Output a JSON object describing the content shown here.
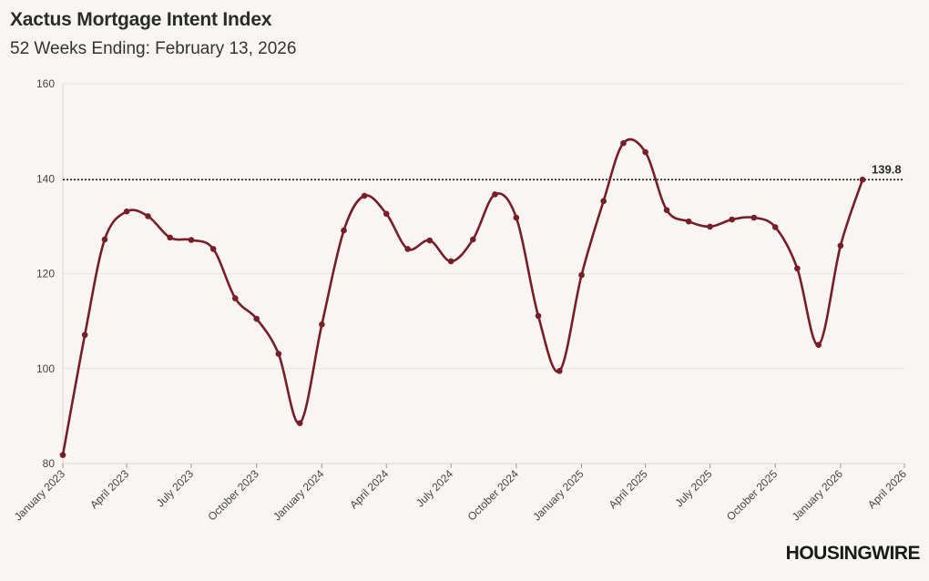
{
  "header": {
    "title": "Xactus Mortgage Intent Index",
    "subtitle": "52 Weeks Ending: February 13, 2026"
  },
  "brand": {
    "logo_text": "HOUSINGWIRE"
  },
  "colors": {
    "line": "#7b1c27",
    "background": "#f8f6f3",
    "grid": "#e9e6e1",
    "reference": "#1a1a1a"
  },
  "chart_data": {
    "type": "line",
    "title": "Xactus Mortgage Intent Index",
    "subtitle": "52 Weeks Ending: February 13, 2026",
    "xlabel": "",
    "ylabel": "",
    "ylim": [
      80,
      160
    ],
    "yticks": [
      80,
      100,
      120,
      140,
      160
    ],
    "xlim": [
      "2023-01-01",
      "2026-04-01"
    ],
    "xticks": [
      {
        "date": "2023-01-01",
        "label": "January 2023"
      },
      {
        "date": "2023-04-01",
        "label": "April 2023"
      },
      {
        "date": "2023-07-01",
        "label": "July 2023"
      },
      {
        "date": "2023-10-01",
        "label": "October 2023"
      },
      {
        "date": "2024-01-01",
        "label": "January 2024"
      },
      {
        "date": "2024-04-01",
        "label": "April 2024"
      },
      {
        "date": "2024-07-01",
        "label": "July 2024"
      },
      {
        "date": "2024-10-01",
        "label": "October 2024"
      },
      {
        "date": "2025-01-01",
        "label": "January 2025"
      },
      {
        "date": "2025-04-01",
        "label": "April 2025"
      },
      {
        "date": "2025-07-01",
        "label": "July 2025"
      },
      {
        "date": "2025-10-01",
        "label": "October 2025"
      },
      {
        "date": "2026-01-01",
        "label": "January 2026"
      },
      {
        "date": "2026-04-01",
        "label": "April 2026"
      }
    ],
    "grid": true,
    "reference_line": {
      "value": 139.8,
      "label": "139.8",
      "style": "dotted"
    },
    "series": [
      {
        "name": "Xactus Mortgage Intent Index",
        "points": [
          {
            "date": "2023-01-01",
            "value": 81.8
          },
          {
            "date": "2023-02-01",
            "value": 107.1
          },
          {
            "date": "2023-03-01",
            "value": 127.2
          },
          {
            "date": "2023-04-01",
            "value": 133.1
          },
          {
            "date": "2023-05-01",
            "value": 132.1
          },
          {
            "date": "2023-06-01",
            "value": 127.6
          },
          {
            "date": "2023-07-01",
            "value": 127.1
          },
          {
            "date": "2023-08-01",
            "value": 125.2
          },
          {
            "date": "2023-09-01",
            "value": 114.8
          },
          {
            "date": "2023-10-01",
            "value": 110.5
          },
          {
            "date": "2023-11-01",
            "value": 103.1
          },
          {
            "date": "2023-12-01",
            "value": 88.5
          },
          {
            "date": "2024-01-01",
            "value": 109.3
          },
          {
            "date": "2024-02-01",
            "value": 129.1
          },
          {
            "date": "2024-03-01",
            "value": 136.4
          },
          {
            "date": "2024-04-01",
            "value": 132.6
          },
          {
            "date": "2024-05-01",
            "value": 125.2
          },
          {
            "date": "2024-06-01",
            "value": 127.0
          },
          {
            "date": "2024-07-01",
            "value": 122.6
          },
          {
            "date": "2024-08-01",
            "value": 127.2
          },
          {
            "date": "2024-09-01",
            "value": 136.7
          },
          {
            "date": "2024-10-01",
            "value": 131.8
          },
          {
            "date": "2024-11-01",
            "value": 111.1
          },
          {
            "date": "2024-12-01",
            "value": 99.5
          },
          {
            "date": "2025-01-01",
            "value": 119.7
          },
          {
            "date": "2025-02-01",
            "value": 135.3
          },
          {
            "date": "2025-03-01",
            "value": 147.5
          },
          {
            "date": "2025-04-01",
            "value": 145.6
          },
          {
            "date": "2025-05-01",
            "value": 133.4
          },
          {
            "date": "2025-06-01",
            "value": 131.0
          },
          {
            "date": "2025-07-01",
            "value": 129.9
          },
          {
            "date": "2025-08-01",
            "value": 131.4
          },
          {
            "date": "2025-09-01",
            "value": 131.8
          },
          {
            "date": "2025-10-01",
            "value": 129.8
          },
          {
            "date": "2025-11-01",
            "value": 121.1
          },
          {
            "date": "2025-12-01",
            "value": 105.0
          },
          {
            "date": "2026-01-01",
            "value": 125.9
          },
          {
            "date": "2026-02-01",
            "value": 139.8
          }
        ]
      }
    ]
  }
}
